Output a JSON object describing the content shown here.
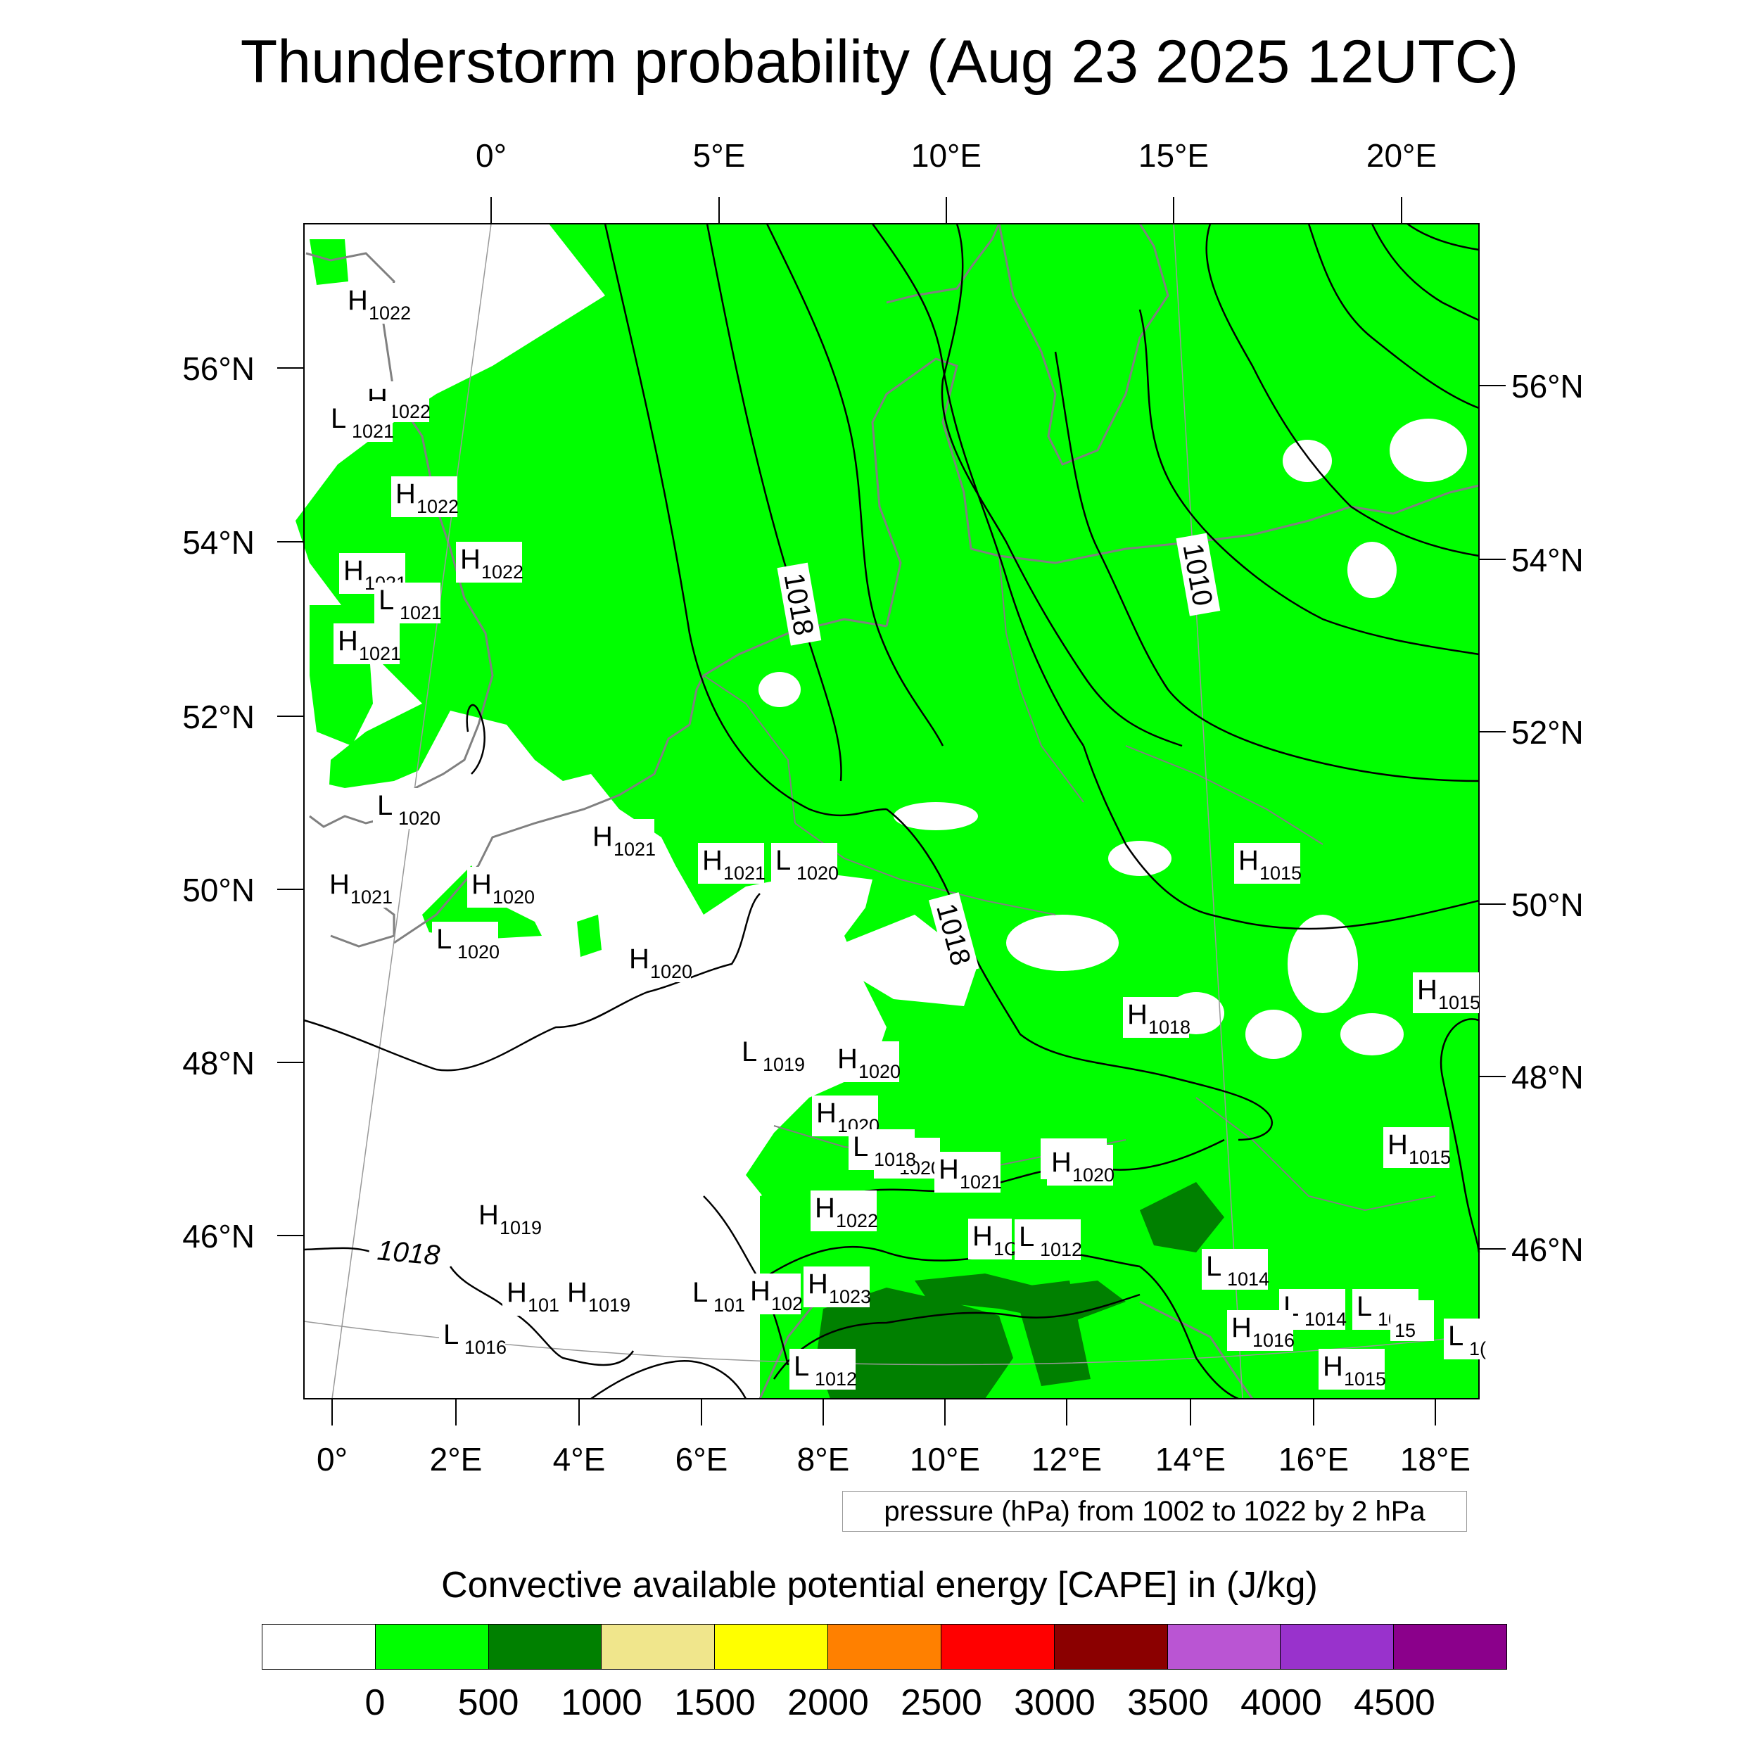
{
  "title": "Thunderstorm probability (Aug 23 2025 12UTC)",
  "axes": {
    "top_lon_ticks": [
      "0°",
      "5°E",
      "10°E",
      "15°E",
      "20°E"
    ],
    "bottom_lon_ticks": [
      "0°",
      "2°E",
      "4°E",
      "6°E",
      "8°E",
      "10°E",
      "12°E",
      "14°E",
      "16°E",
      "18°E"
    ],
    "left_lat_ticks": [
      "56°N",
      "54°N",
      "52°N",
      "50°N",
      "48°N",
      "46°N"
    ],
    "right_lat_ticks": [
      "56°N",
      "54°N",
      "52°N",
      "50°N",
      "48°N",
      "46°N"
    ]
  },
  "contour_labels": [
    "1018",
    "1018",
    "1010",
    "1018"
  ],
  "pressure_centers": [
    {
      "letter": "H",
      "value": "1022"
    },
    {
      "letter": "H",
      "value": "1022"
    },
    {
      "letter": "L",
      "value": "1021"
    },
    {
      "letter": "H",
      "value": "1022"
    },
    {
      "letter": "H",
      "value": "1022"
    },
    {
      "letter": "H",
      "value": "1021"
    },
    {
      "letter": "L",
      "value": "1021"
    },
    {
      "letter": "H",
      "value": "1021"
    },
    {
      "letter": "L",
      "value": "1020"
    },
    {
      "letter": "L",
      "value": "1020"
    },
    {
      "letter": "H",
      "value": "1021"
    },
    {
      "letter": "H",
      "value": "1020"
    },
    {
      "letter": "H",
      "value": "1021"
    },
    {
      "letter": "H",
      "value": "1021"
    },
    {
      "letter": "L",
      "value": "1020"
    },
    {
      "letter": "H",
      "value": "1020"
    },
    {
      "letter": "H",
      "value": "1015"
    },
    {
      "letter": "H",
      "value": "1018"
    },
    {
      "letter": "H",
      "value": "1015"
    },
    {
      "letter": "L",
      "value": "1019"
    },
    {
      "letter": "H",
      "value": "1020"
    },
    {
      "letter": "H",
      "value": "1020"
    },
    {
      "letter": "H",
      "value": "1020"
    },
    {
      "letter": "H",
      "value": "1020"
    },
    {
      "letter": "L",
      "value": "1018"
    },
    {
      "letter": "H",
      "value": "1021"
    },
    {
      "letter": "H",
      "value": "1020"
    },
    {
      "letter": "H",
      "value": "1015"
    },
    {
      "letter": "H",
      "value": "1022"
    },
    {
      "letter": "H",
      "value": "1019"
    },
    {
      "letter": "H",
      "value": "1C"
    },
    {
      "letter": "L",
      "value": "1012"
    },
    {
      "letter": "L",
      "value": "1014"
    },
    {
      "letter": "H",
      "value": "101"
    },
    {
      "letter": "H",
      "value": "1019"
    },
    {
      "letter": "L",
      "value": "101"
    },
    {
      "letter": "H",
      "value": "102"
    },
    {
      "letter": "H",
      "value": "1023"
    },
    {
      "letter": "L",
      "value": "1014"
    },
    {
      "letter": "L",
      "value": "1014"
    },
    {
      "letter": "L",
      "value": "1016"
    },
    {
      "letter": "H",
      "value": "1016"
    },
    {
      "letter": "L",
      "value": "1012"
    },
    {
      "letter": "H",
      "value": "1015"
    },
    {
      "letter": "",
      "value": "15"
    },
    {
      "letter": "L",
      "value": "1("
    }
  ],
  "contour_note": "pressure (hPa) from 1002 to 1022 by 2 hPa",
  "legend": {
    "title": "Convective available potential energy [CAPE] in (J/kg)",
    "colors": [
      "#ffffff",
      "#00ff00",
      "#008000",
      "#f0e68c",
      "#ffff00",
      "#ff8000",
      "#ff0000",
      "#8b0000",
      "#ba55d3",
      "#9932cc",
      "#8b008b"
    ],
    "levels": [
      "0",
      "500",
      "1000",
      "1500",
      "2000",
      "2500",
      "3000",
      "3500",
      "4000",
      "4500"
    ]
  }
}
